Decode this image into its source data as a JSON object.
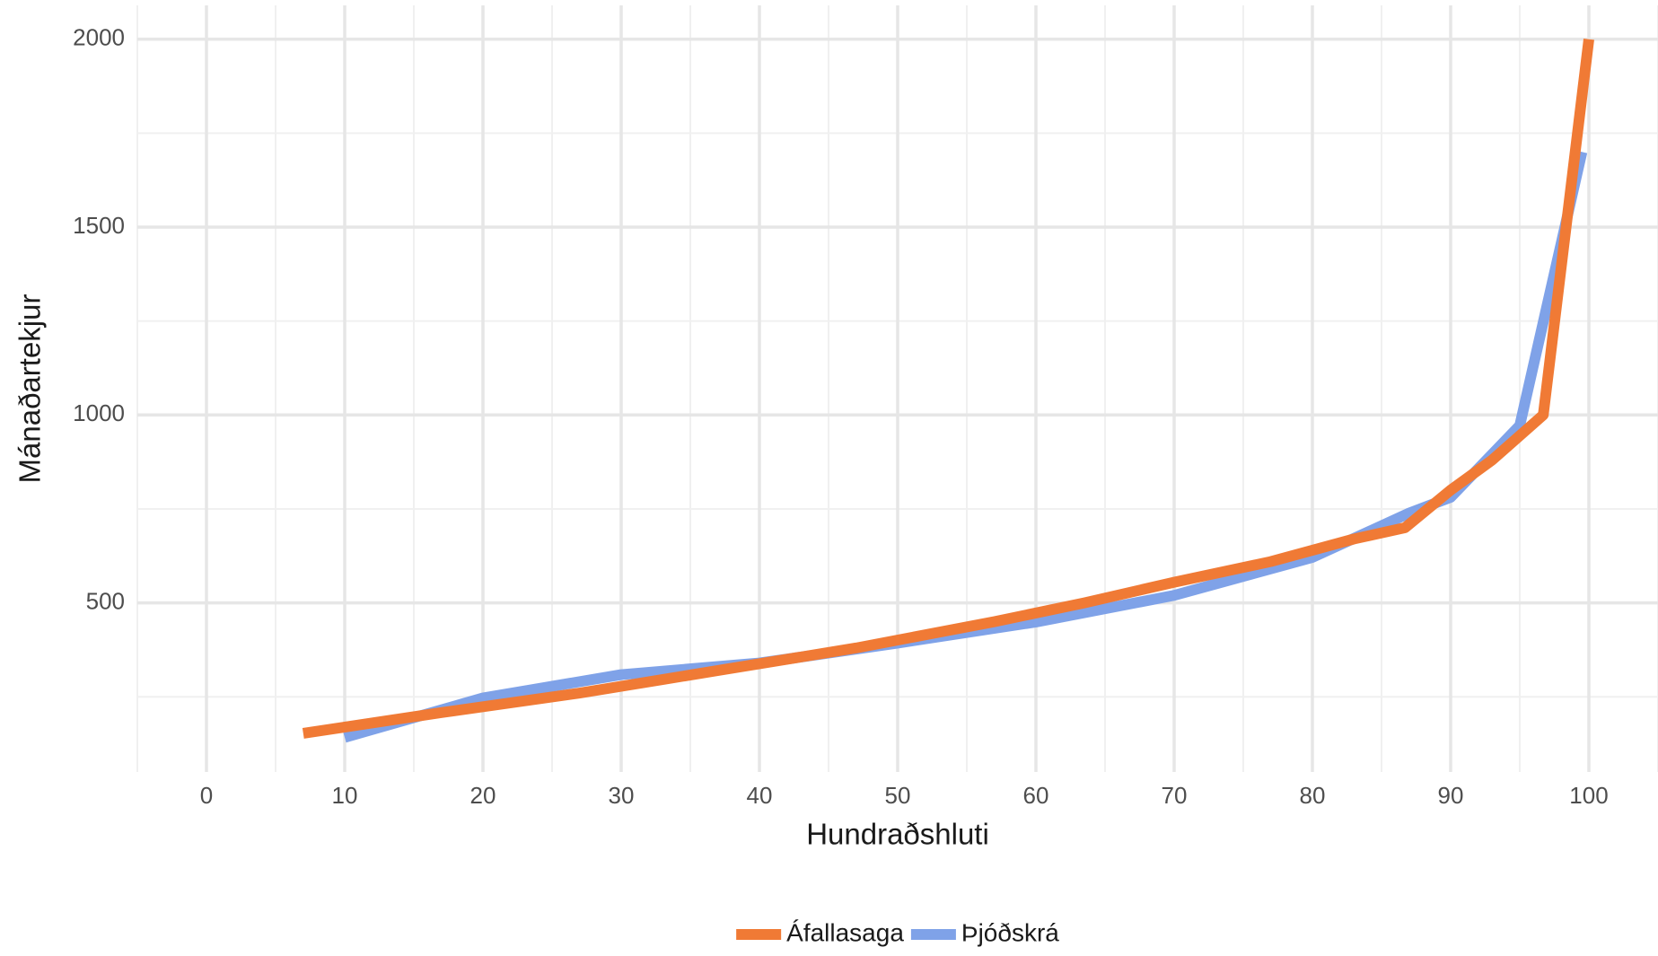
{
  "chart_data": {
    "type": "line",
    "x_label": "Hundraðshluti",
    "y_label": "Mánaðartekjur",
    "xlim": [
      -5,
      105
    ],
    "xticks": [
      0,
      10,
      20,
      30,
      40,
      50,
      60,
      70,
      80,
      90,
      100
    ],
    "ylim": [
      50,
      2090
    ],
    "yticks": [
      500,
      1000,
      1500,
      2000
    ],
    "grid": true,
    "legend": "bottom",
    "series": [
      {
        "name": "Áfallasaga",
        "color": "#f07a35",
        "x": [
          7,
          17,
          27,
          37,
          47,
          57,
          63.5,
          70,
          77,
          83,
          86.7,
          90,
          93,
          96.7,
          100
        ],
        "values": [
          153,
          208,
          260,
          320,
          380,
          450,
          500,
          555,
          610,
          670,
          700,
          800,
          880,
          1000,
          2000
        ]
      },
      {
        "name": "Þjóðskrá",
        "color": "#7fa2e8",
        "x": [
          10,
          20,
          30,
          40,
          50,
          60,
          70,
          80,
          87,
          90,
          95,
          99.5
        ],
        "values": [
          142,
          247,
          309,
          340,
          393,
          449,
          520,
          621,
          739,
          781,
          972,
          1700
        ]
      }
    ]
  }
}
